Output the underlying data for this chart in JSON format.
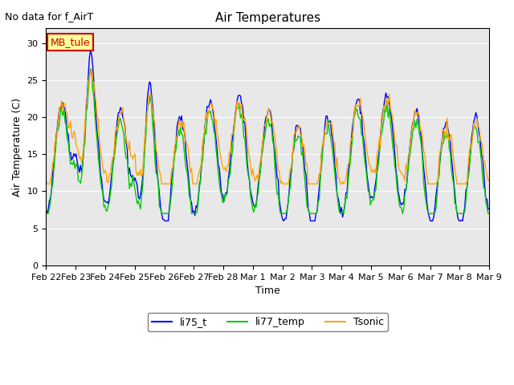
{
  "title": "Air Temperatures",
  "subtitle": "No data for f_AirT",
  "xlabel": "Time",
  "ylabel": "Air Temperature (C)",
  "ylim": [
    0,
    32
  ],
  "yticks": [
    0,
    5,
    10,
    15,
    20,
    25,
    30
  ],
  "legend_labels": [
    "li75_t",
    "li77_temp",
    "Tsonic"
  ],
  "line_colors": [
    "blue",
    "#00cc00",
    "orange"
  ],
  "background_color": "#e8e8e8",
  "legend_box_color": "#ffff99",
  "legend_box_edge": "#cc0000",
  "legend_text": "MB_tule",
  "x_tick_labels": [
    "Feb 22",
    "Feb 23",
    "Feb 24",
    "Feb 25",
    "Feb 26",
    "Feb 27",
    "Feb 28",
    "Mar 1",
    "Mar 2",
    "Mar 3",
    "Mar 4",
    "Mar 5",
    "Mar 6",
    "Mar 7",
    "Mar 8",
    "Mar 9"
  ],
  "num_points": 400
}
